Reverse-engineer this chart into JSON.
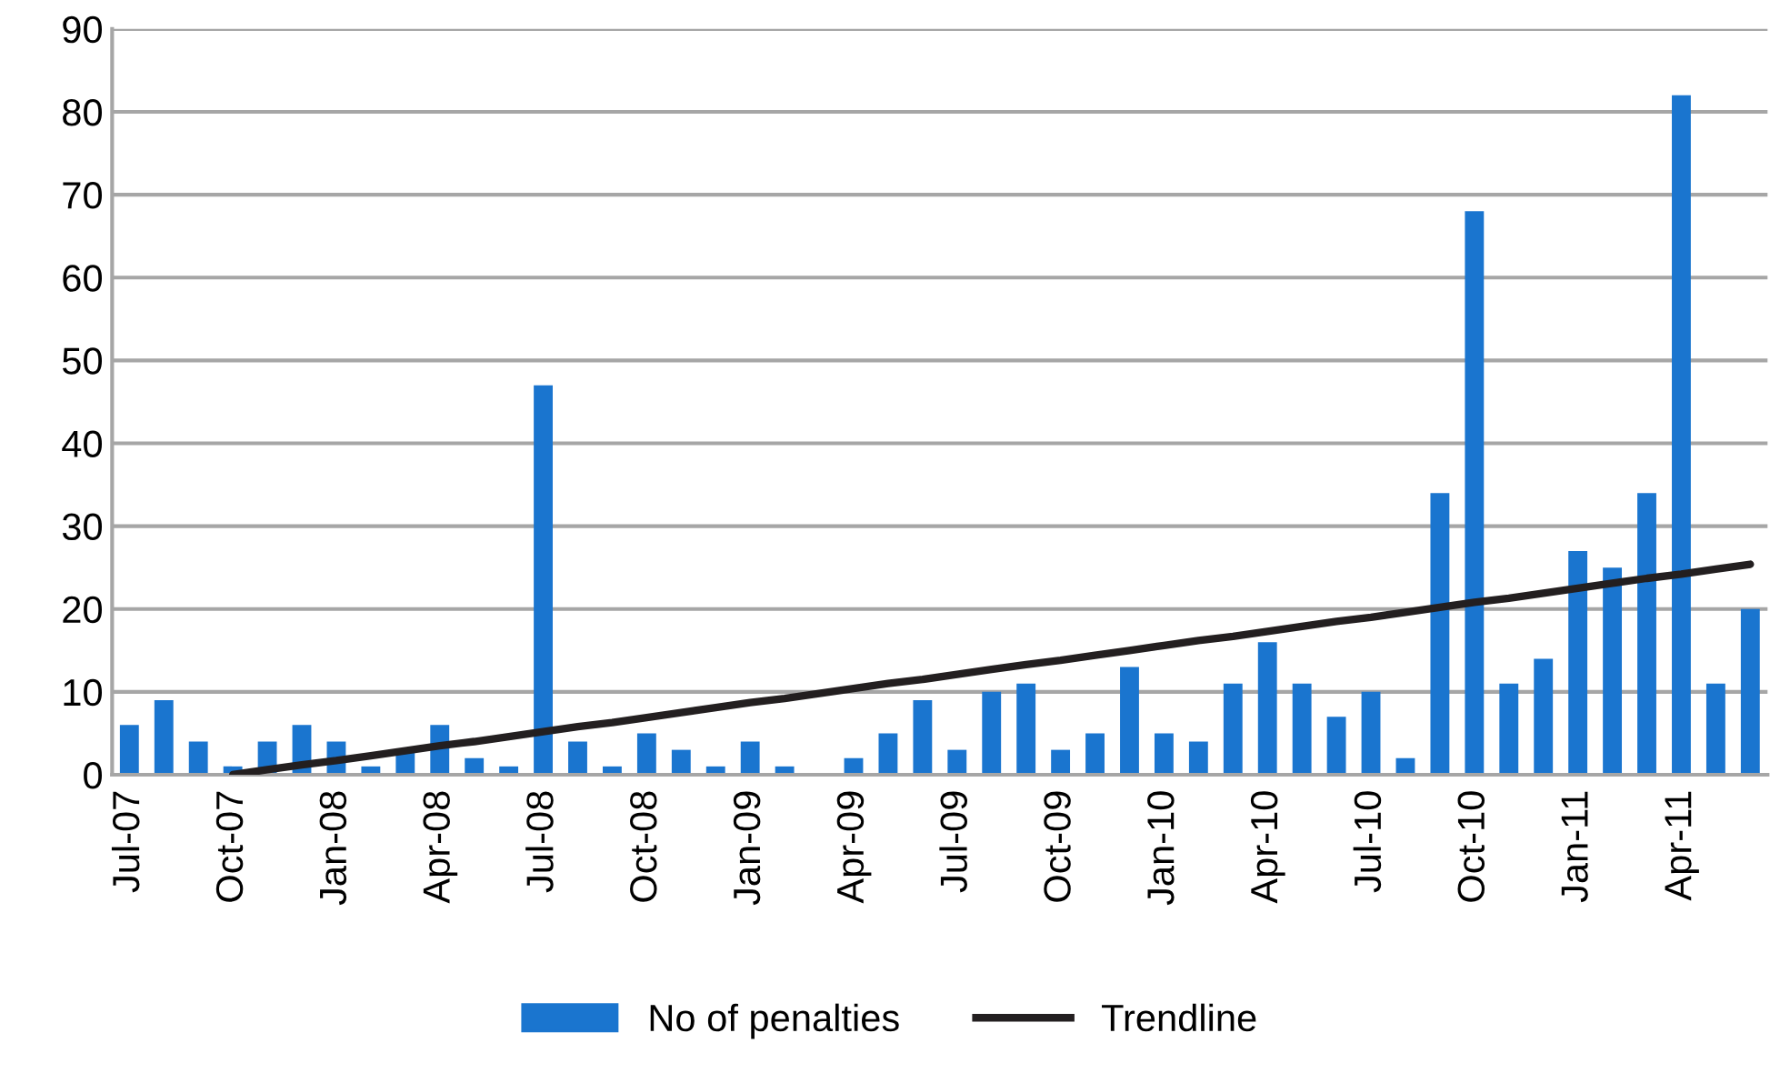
{
  "chart_data": {
    "type": "bar",
    "categories": [
      "Jul-07",
      null,
      null,
      "Oct-07",
      null,
      null,
      "Jan-08",
      null,
      null,
      "Apr-08",
      null,
      null,
      "Jul-08",
      null,
      null,
      "Oct-08",
      null,
      null,
      "Jan-09",
      null,
      null,
      "Apr-09",
      null,
      null,
      "Jul-09",
      null,
      null,
      "Oct-09",
      null,
      null,
      "Jan-10",
      null,
      null,
      "Apr-10",
      null,
      null,
      "Jul-10",
      null,
      null,
      "Oct-10",
      null,
      null,
      "Jan-11",
      null,
      null,
      "Apr-11",
      null,
      null
    ],
    "series": [
      {
        "name": "No of penalties",
        "color": "#1a75cf",
        "values": [
          6,
          9,
          4,
          1,
          4,
          6,
          4,
          1,
          3,
          6,
          2,
          1,
          47,
          4,
          1,
          5,
          3,
          1,
          4,
          1,
          0,
          2,
          5,
          9,
          3,
          10,
          11,
          3,
          5,
          13,
          5,
          4,
          11,
          16,
          11,
          7,
          10,
          2,
          34,
          68,
          11,
          14,
          27,
          25,
          34,
          82,
          11,
          20
        ]
      },
      {
        "name": "Trendline",
        "type": "line",
        "color": "#231f20",
        "values": [
          null,
          null,
          null,
          0,
          0.6,
          1.2,
          1.7,
          2.3,
          2.9,
          3.5,
          4.0,
          4.6,
          5.2,
          5.8,
          6.3,
          6.9,
          7.5,
          8.1,
          8.7,
          9.2,
          9.8,
          10.4,
          11.0,
          11.5,
          12.1,
          12.7,
          13.3,
          13.8,
          14.4,
          15.0,
          15.6,
          16.2,
          16.7,
          17.3,
          17.9,
          18.5,
          19.0,
          19.6,
          20.2,
          20.8,
          21.3,
          21.9,
          22.5,
          23.1,
          23.7,
          24.2,
          24.8,
          25.4
        ]
      }
    ],
    "ylim": [
      0,
      90
    ],
    "yticks": [
      0,
      10,
      20,
      30,
      40,
      50,
      60,
      70,
      80,
      90
    ],
    "grid": "y",
    "legend": "bottom"
  }
}
